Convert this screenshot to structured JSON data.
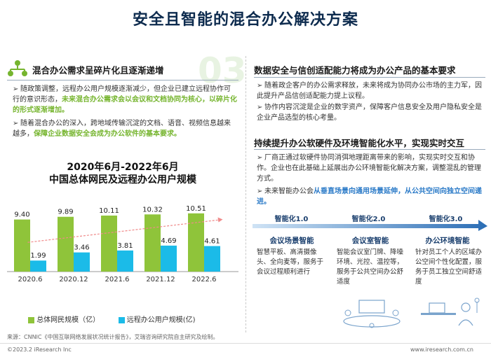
{
  "page": {
    "title": "安全且智能的混合办公解决方案",
    "big_number": "03",
    "source": "来源：CNNIC《中国互联网络发展状况统计报告》，艾瑞咨询研究院自主研究及绘制。",
    "copyright": "©2023.2 iResearch Inc",
    "website": "www.iresearch.com.cn"
  },
  "left": {
    "heading": "混合办公需求呈碎片化且逐渐递增",
    "bullet1_plain": "随政策调整，远程办公用户规模逐渐减少，但企业已建立远程协作可行的意识形态，",
    "bullet1_emph": "未来混合办公需求会以会议和文档协同为核心，以碎片化的形式逐渐增加。",
    "bullet2_plain": "随着混合办公的深入，跨地域传输沉淀的文档、语音、视频信息越来越多，",
    "bullet2_emph": "保障企业数据安全会成为办公软件的基本要求。",
    "chart_title_line1": "2020年6月-2022年6月",
    "chart_title_line2": "中国总体网民及远程办公用户规模",
    "legend_total": "总体网民规模（亿）",
    "legend_remote": "远程办公用户规模(亿)"
  },
  "right": {
    "heading1": "数据安全与信创适配能力将成为办公产品的基本要求",
    "r_bullet1": "随着政企客户的办公需求释放，未来将成为协同办公市场的主力军，因此提升产品信创适配能力提上议程。",
    "r_bullet2": "协作内容沉淀是企业的数字资产，保障客户信息安全及用户隐私安全是企业产品选型的核心考量。",
    "heading2": "持续提升办公软硬件及环境智能化水平，实现实时交互",
    "r_bullet3": "厂商正通过软硬件协同消弭地理距离带来的影响，实现实时交互和协作。企业也在此基础上延展出办公环境智能化解决方案，调整混乱的管理方式。",
    "r_bullet4_plain": "未来智能办公会",
    "r_bullet4_emph": "从垂直场景向通用场景延伸，从公共空间向独立空间递进。",
    "levels": [
      {
        "title": "智能化1.0",
        "name": "会议场景智能",
        "desc": "智慧平板、高清摄像头、全向麦等，服务于会议过程顺利进行"
      },
      {
        "title": "智能化2.0",
        "name": "会议室智能",
        "desc": "智能会议室门牌、降噪环境、光控、温控等，服务于公共空间办公舒适度"
      },
      {
        "title": "智能化3.0",
        "name": "办公环境智能",
        "desc": "针对员工个人的区域办公空间个性化配置，服务于员工独立空间舒适度"
      }
    ]
  },
  "colors": {
    "green_bar": "#8fc43a",
    "blue_bar": "#1bbbe8",
    "accent_blue": "#2979c7",
    "accent_green": "#76b52f",
    "trend": "#f08a8a"
  },
  "chart_data": {
    "type": "bar",
    "categories": [
      "2020.6",
      "2020.12",
      "2021.6",
      "2021.12",
      "2022.6"
    ],
    "series": [
      {
        "name": "总体网民规模（亿）",
        "values": [
          9.4,
          9.89,
          10.11,
          10.32,
          10.51
        ]
      },
      {
        "name": "远程办公用户规模(亿)",
        "values": [
          1.99,
          3.46,
          3.81,
          4.69,
          4.61
        ]
      }
    ],
    "value_labels": {
      "total": [
        "9.40",
        "9.89",
        "10.11",
        "10.32",
        "10.51"
      ],
      "remote": [
        "1.99",
        "3.46",
        "3.81",
        "4.69",
        "4.61"
      ]
    },
    "ylim": [
      0,
      12
    ],
    "legend": "bottom"
  }
}
